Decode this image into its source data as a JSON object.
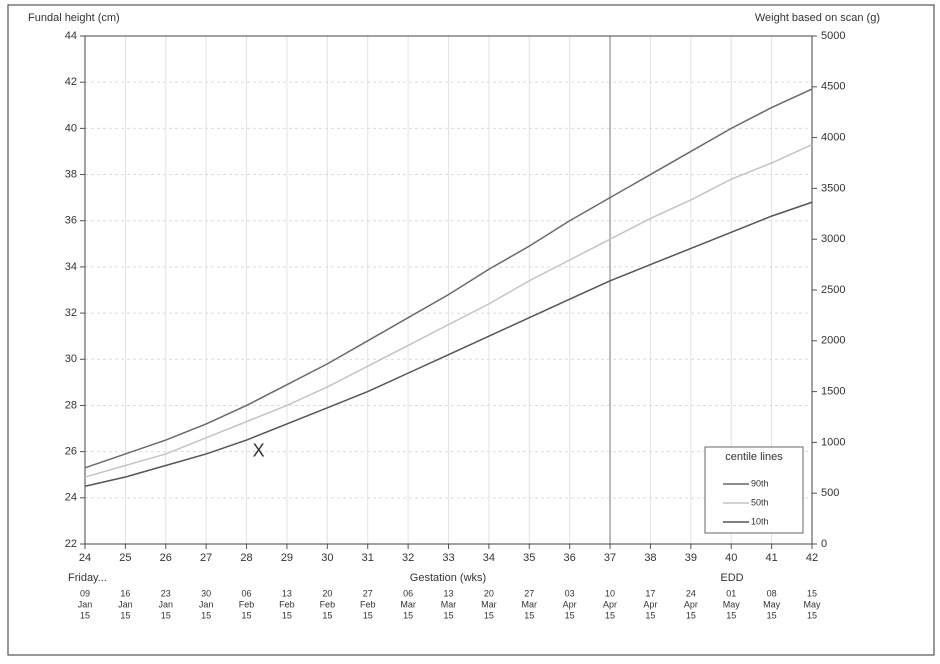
{
  "chart_data": {
    "type": "line",
    "y_label": "Fundal height (cm)",
    "y2_label": "Weight based on scan (g)",
    "x_label": "Gestation (wks)",
    "annotations": [
      "Friday...",
      "EDD"
    ],
    "x": [
      24,
      25,
      26,
      27,
      28,
      29,
      30,
      31,
      32,
      33,
      34,
      35,
      36,
      37,
      38,
      39,
      40,
      41,
      42
    ],
    "xlim": [
      24,
      42
    ],
    "xticks": [
      24,
      25,
      26,
      27,
      28,
      29,
      30,
      31,
      32,
      33,
      34,
      35,
      36,
      37,
      38,
      39,
      40,
      41,
      42
    ],
    "dates": [
      [
        "09",
        "Jan",
        "15"
      ],
      [
        "16",
        "Jan",
        "15"
      ],
      [
        "23",
        "Jan",
        "15"
      ],
      [
        "30",
        "Jan",
        "15"
      ],
      [
        "06",
        "Feb",
        "15"
      ],
      [
        "13",
        "Feb",
        "15"
      ],
      [
        "20",
        "Feb",
        "15"
      ],
      [
        "27",
        "Feb",
        "15"
      ],
      [
        "06",
        "Mar",
        "15"
      ],
      [
        "13",
        "Mar",
        "15"
      ],
      [
        "20",
        "Mar",
        "15"
      ],
      [
        "27",
        "Mar",
        "15"
      ],
      [
        "03",
        "Apr",
        "15"
      ],
      [
        "10",
        "Apr",
        "15"
      ],
      [
        "17",
        "Apr",
        "15"
      ],
      [
        "24",
        "Apr",
        "15"
      ],
      [
        "01",
        "May",
        "15"
      ],
      [
        "08",
        "May",
        "15"
      ],
      [
        "15",
        "May",
        "15"
      ]
    ],
    "ylim": [
      22,
      44
    ],
    "yticks": [
      22,
      24,
      26,
      28,
      30,
      32,
      34,
      36,
      38,
      40,
      42,
      44
    ],
    "y2lim": [
      0,
      5000
    ],
    "y2ticks": [
      0,
      500,
      1000,
      1500,
      2000,
      2500,
      3000,
      3500,
      4000,
      4500,
      5000
    ],
    "grid": true,
    "vline": 37,
    "legend_title": "centile lines",
    "legend": "lower-right",
    "series": [
      {
        "name": "90th",
        "color": "#6a6a6a",
        "values": [
          25.3,
          25.9,
          26.5,
          27.2,
          28.0,
          28.9,
          29.8,
          30.8,
          31.8,
          32.8,
          33.9,
          34.9,
          36.0,
          37.0,
          38.0,
          39.0,
          40.0,
          40.9,
          41.7
        ]
      },
      {
        "name": "50th",
        "color": "#c4c4c4",
        "values": [
          24.9,
          25.4,
          25.9,
          26.6,
          27.3,
          28.0,
          28.8,
          29.7,
          30.6,
          31.5,
          32.4,
          33.4,
          34.3,
          35.2,
          36.1,
          36.9,
          37.8,
          38.5,
          39.3
        ]
      },
      {
        "name": "10th",
        "color": "#555555",
        "values": [
          24.5,
          24.9,
          25.4,
          25.9,
          26.5,
          27.2,
          27.9,
          28.6,
          29.4,
          30.2,
          31.0,
          31.8,
          32.6,
          33.4,
          34.1,
          34.8,
          35.5,
          36.2,
          36.8
        ]
      }
    ],
    "points": [
      {
        "x": 28.3,
        "y": 26,
        "label": "X"
      }
    ]
  }
}
